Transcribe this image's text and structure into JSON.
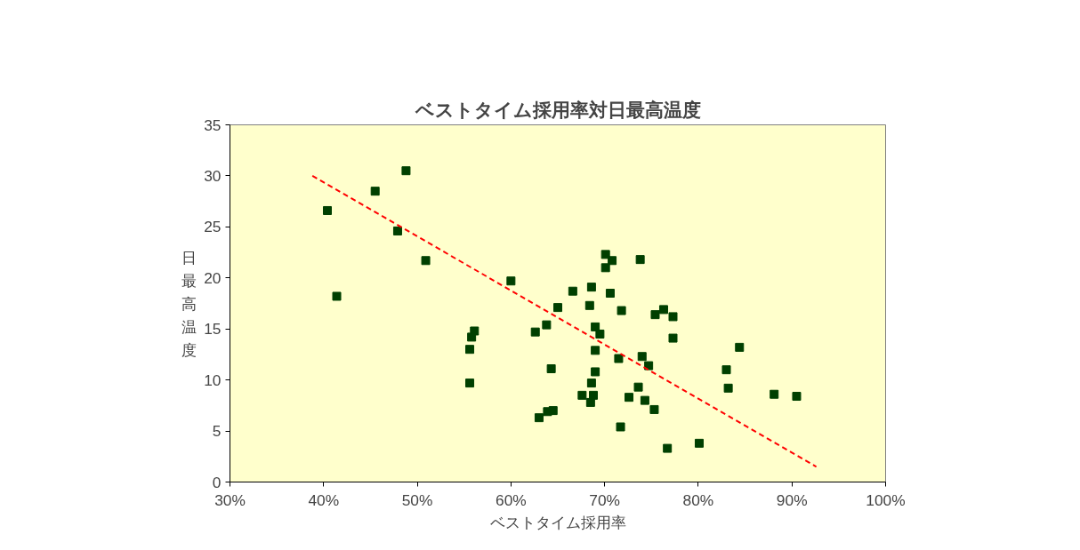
{
  "chart_data": {
    "type": "scatter",
    "title": "ベストタイム採用率対日最高温度",
    "xlabel": "ベストタイム採用率",
    "ylabel": "日最高温度",
    "xlim": [
      30,
      100
    ],
    "xticks": [
      {
        "value": 30,
        "label": "30%"
      },
      {
        "value": 40,
        "label": "40%"
      },
      {
        "value": 50,
        "label": "50%"
      },
      {
        "value": 60,
        "label": "60%"
      },
      {
        "value": 70,
        "label": "70%"
      },
      {
        "value": 80,
        "label": "80%"
      },
      {
        "value": 90,
        "label": "90%"
      },
      {
        "value": 100,
        "label": "100%"
      }
    ],
    "ylim": [
      0,
      35
    ],
    "yticks": [
      0,
      5,
      10,
      15,
      20,
      25,
      30,
      35
    ],
    "grid": false,
    "series": [
      {
        "marker": "square",
        "color": "#004000",
        "x": [
          40.4,
          41.4,
          45.5,
          48.8,
          47.9,
          50.9,
          55.6,
          55.8,
          56.1,
          55.6,
          60.0,
          62.6,
          63.8,
          63.0,
          63.9,
          64.5,
          64.3,
          65.0,
          66.6,
          68.6,
          68.4,
          69.0,
          69.5,
          69.0,
          69.0,
          68.6,
          68.8,
          68.5,
          67.6,
          70.1,
          70.1,
          70.8,
          70.6,
          71.8,
          71.5,
          71.7,
          72.6,
          73.6,
          73.8,
          74.0,
          74.7,
          74.3,
          75.3,
          75.4,
          76.3,
          77.3,
          77.3,
          76.7,
          80.1,
          83.0,
          83.2,
          84.4,
          88.1,
          90.5
        ],
        "values": [
          26.6,
          18.2,
          28.5,
          30.5,
          24.6,
          21.7,
          13.0,
          14.2,
          14.8,
          9.7,
          19.7,
          14.7,
          15.4,
          6.3,
          6.9,
          7.0,
          11.1,
          17.1,
          18.7,
          19.1,
          17.3,
          15.2,
          14.5,
          12.9,
          10.8,
          9.7,
          8.5,
          7.8,
          8.5,
          22.3,
          21.0,
          21.7,
          18.5,
          16.8,
          12.1,
          5.4,
          8.3,
          9.3,
          21.8,
          12.3,
          11.4,
          8.0,
          7.1,
          16.4,
          16.9,
          16.2,
          14.1,
          3.3,
          3.8,
          11.0,
          9.2,
          13.2,
          8.6,
          8.4
        ]
      },
      {
        "type": "line",
        "color": "#ff0000",
        "line_style": "dashed",
        "x": [
          38.8,
          92.6
        ],
        "values": [
          30.0,
          1.5
        ]
      }
    ]
  }
}
